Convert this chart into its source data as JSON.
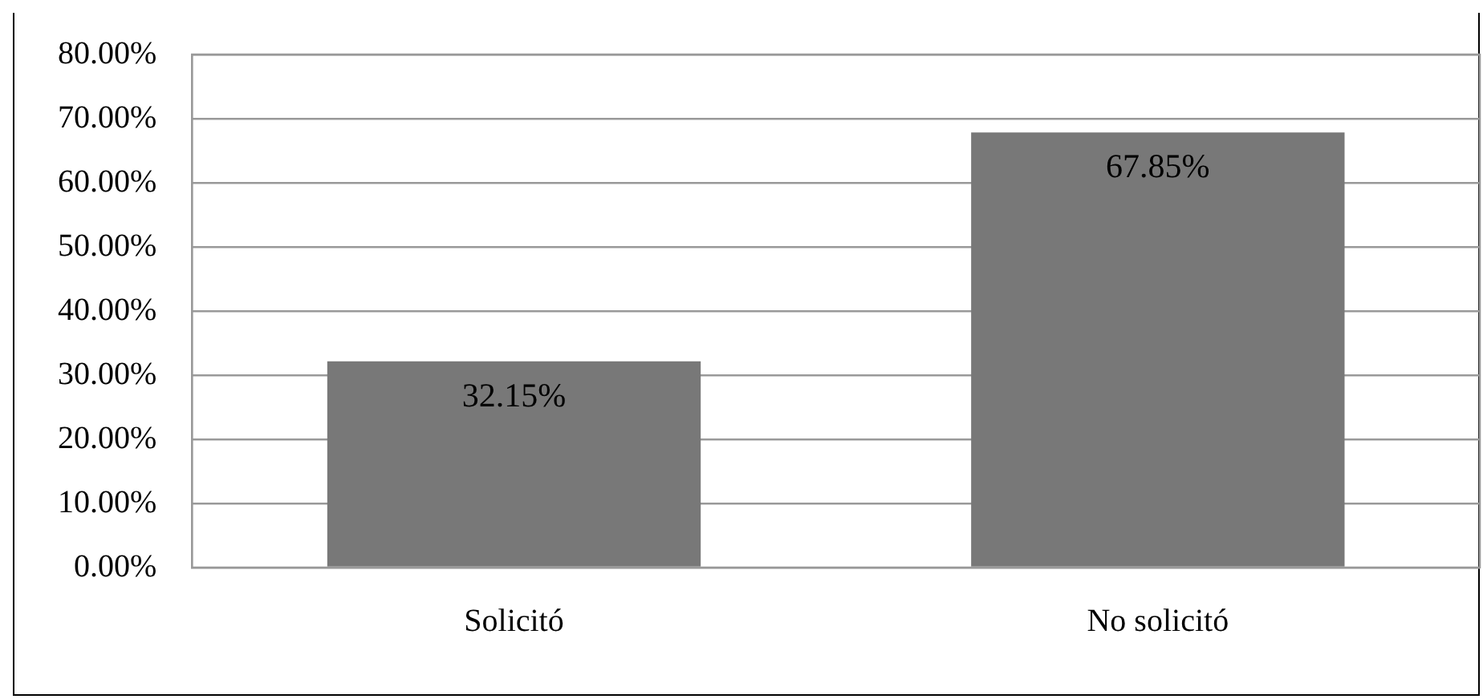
{
  "chart_data": {
    "type": "bar",
    "categories": [
      "Solicitó",
      "No solicitó"
    ],
    "values": [
      32.15,
      67.85
    ],
    "color": "#787878",
    "value_labels": [
      "32.15%",
      "67.85%"
    ],
    "ylim": [
      0,
      80
    ],
    "yticks": [
      {
        "value": 0,
        "label": "0.00%"
      },
      {
        "value": 10,
        "label": "10.00%"
      },
      {
        "value": 20,
        "label": "20.00%"
      },
      {
        "value": 30,
        "label": "30.00%"
      },
      {
        "value": 40,
        "label": "40.00%"
      },
      {
        "value": 50,
        "label": "50.00%"
      },
      {
        "value": 60,
        "label": "60.00%"
      },
      {
        "value": 70,
        "label": "70.00%"
      },
      {
        "value": 80,
        "label": "80.00%"
      }
    ],
    "grid": "y",
    "legend": false
  }
}
